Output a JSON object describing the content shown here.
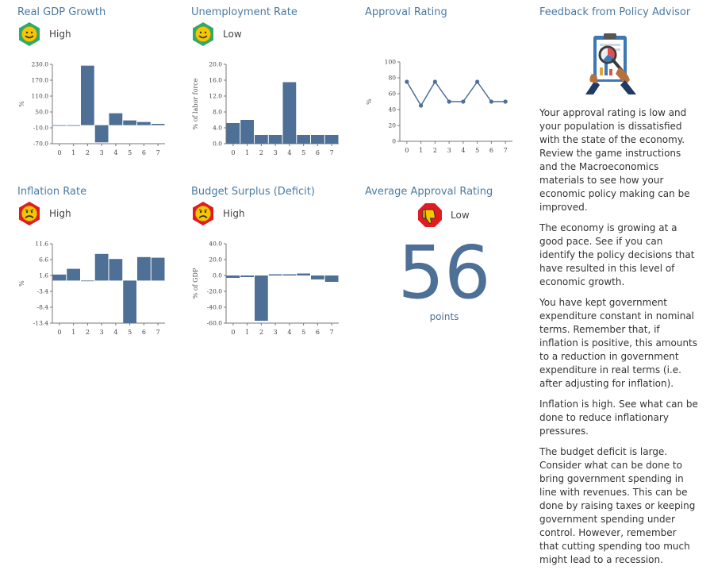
{
  "panels": {
    "gdp": {
      "title": "Real GDP Growth",
      "status": "High",
      "face": "happy"
    },
    "unemployment": {
      "title": "Unemployment Rate",
      "status": "Low",
      "face": "happy"
    },
    "approval": {
      "title": "Approval Rating"
    },
    "inflation": {
      "title": "Inflation Rate",
      "status": "High",
      "face": "sad"
    },
    "budget": {
      "title": "Budget Surplus (Deficit)",
      "status": "High",
      "face": "sad"
    },
    "average": {
      "title": "Average Approval Rating",
      "status": "Low",
      "value": "56",
      "unit": "points"
    }
  },
  "colors": {
    "bar": "#4e6f96",
    "line": "#4e6f96",
    "title": "#4a7aa3",
    "happy_bg": "#2eaa6a",
    "sad_bg": "#e11b22",
    "face": "#f7c600"
  },
  "icons": {
    "happy": "smiley-icon",
    "sad": "frown-icon",
    "thumbs_down": "thumbs-down-icon",
    "advisor": "magnifier-clipboard-icon"
  },
  "feedback": {
    "title": "Feedback from Policy Advisor",
    "paragraphs": [
      "Your approval rating is low and your population is dissatisfied with the state of the economy. Review the game instructions and the Macroeconomics materials to see how your economic policy making can be improved.",
      "The economy is growing at a good pace. See if you can identify the policy decisions that have resulted in this level of economic growth.",
      "You have kept government expenditure constant in nominal terms. Remember that, if inflation is positive, this amounts to a reduction in government expenditure in real terms (i.e. after adjusting for inflation).",
      "Inflation is high. See what can be done to reduce inflationary pressures.",
      "The budget deficit is large. Consider what can be done to bring government spending in line with revenues. This can be done by raising taxes or keeping government spending under control. However, remember that cutting spending too much might lead to a recession."
    ]
  },
  "chart_data": [
    {
      "id": "gdp",
      "type": "bar",
      "title": "Real GDP Growth",
      "ylabel": "%",
      "ylim": [
        -70,
        230
      ],
      "ticks": [
        "230.0",
        "170.0",
        "110.0",
        "50.0",
        "-10.0",
        "-70.0"
      ],
      "categories": [
        "0",
        "1",
        "2",
        "3",
        "4",
        "5",
        "6",
        "7"
      ],
      "values": [
        -2,
        0,
        225,
        -65,
        45,
        18,
        12,
        5
      ]
    },
    {
      "id": "unemployment",
      "type": "bar",
      "title": "Unemployment Rate",
      "ylabel": "% of labor force",
      "ylim": [
        0,
        20
      ],
      "ticks": [
        "20.0",
        "16.0",
        "12.0",
        "8.0",
        "4.0",
        "0.0"
      ],
      "categories": [
        "0",
        "1",
        "2",
        "3",
        "4",
        "5",
        "6",
        "7"
      ],
      "values": [
        5.2,
        6.0,
        2.2,
        2.2,
        15.5,
        2.2,
        2.2,
        2.2
      ]
    },
    {
      "id": "approval",
      "type": "line",
      "title": "Approval Rating",
      "ylabel": "%",
      "ylim": [
        0,
        100
      ],
      "ticks": [
        "100",
        "80",
        "60",
        "40",
        "20",
        "0"
      ],
      "categories": [
        "0",
        "1",
        "2",
        "3",
        "4",
        "5",
        "6",
        "7"
      ],
      "values": [
        75,
        45,
        75,
        50,
        50,
        75,
        50,
        50
      ]
    },
    {
      "id": "inflation",
      "type": "bar",
      "title": "Inflation Rate",
      "ylabel": "%",
      "ylim": [
        -13.4,
        11.6
      ],
      "ticks": [
        "11.6",
        "6.6",
        "1.6",
        "-3.4",
        "-8.4",
        "-13.4"
      ],
      "categories": [
        "0",
        "1",
        "2",
        "3",
        "4",
        "5",
        "6",
        "7"
      ],
      "values": [
        1.9,
        3.7,
        0,
        8.4,
        6.8,
        -13.4,
        7.4,
        7.2
      ]
    },
    {
      "id": "budget",
      "type": "bar",
      "title": "Budget Surplus (Deficit)",
      "ylabel": "% of GDP",
      "ylim": [
        -60,
        40
      ],
      "ticks": [
        "40.0",
        "20.0",
        "0.0",
        "-20.0",
        "-40.0",
        "-60.0"
      ],
      "categories": [
        "0",
        "1",
        "2",
        "3",
        "4",
        "5",
        "6",
        "7"
      ],
      "values": [
        -3,
        -2,
        -57,
        1.5,
        1.5,
        2.5,
        -5,
        -8
      ]
    }
  ]
}
